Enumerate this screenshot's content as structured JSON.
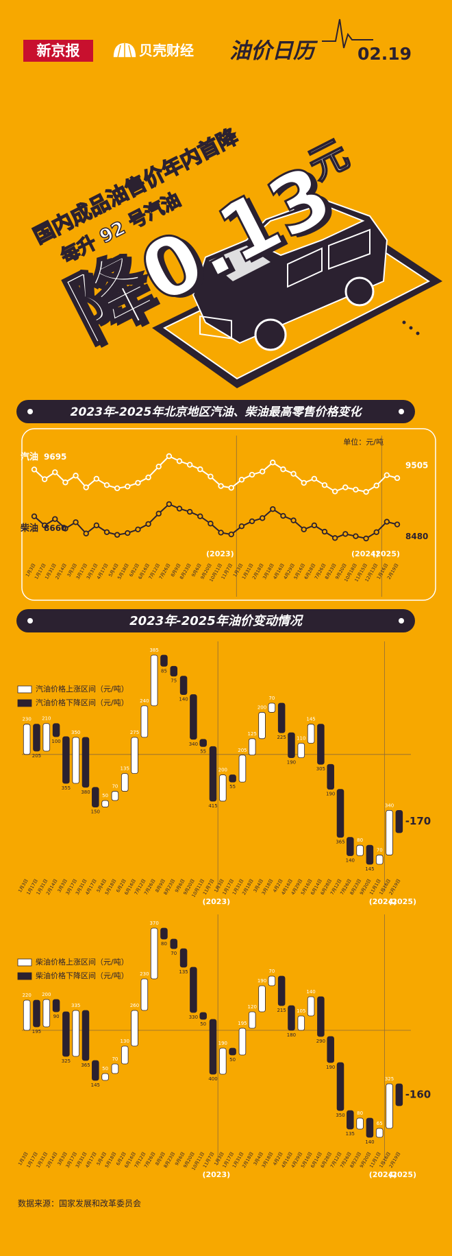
{
  "header": {
    "logo_newspaper": "新京报",
    "logo_finance": "贝壳财经",
    "column": "油价日历",
    "date": "02.19"
  },
  "hero": {
    "headline": "国内成品油售价年内首降",
    "subline": "每升 92 号汽油",
    "big": "降0.13",
    "unit": "元"
  },
  "waterfall_section_title": "2023年-2025年油价变动情况",
  "source": "数据来源：国家发展和改革委员会",
  "chart_data": [
    {
      "type": "line",
      "title": "2023年-2025年北京地区汽油、柴油最高零售价格变化",
      "unit": "单位：元/吨",
      "categories": [
        "1月3日",
        "1月17日",
        "1月31日",
        "2月14日",
        "3月3日",
        "3月17日",
        "3月31日",
        "4月17日",
        "5月4日",
        "5月18日",
        "6月2日",
        "6月16日",
        "7月12日",
        "7月26日",
        "8月9日",
        "8月23日",
        "9月6日",
        "9月20日",
        "10月11日",
        "11月7日",
        "1月3日",
        "1月31日",
        "2月18日",
        "3月18日",
        "4月16日",
        "4月29日",
        "5月16日",
        "6月28日",
        "7月26日",
        "8月23日",
        "9月20日",
        "10月18日",
        "11月15日",
        "12月13日",
        "1月16日",
        "2月19日"
      ],
      "annotations": [
        "(2023)",
        "(2024)",
        "(2025)"
      ],
      "series": [
        {
          "name": "汽油",
          "color": "#ffffff",
          "values": [
            9695,
            9480,
            9635,
            9410,
            9560,
            9300,
            9490,
            9350,
            9280,
            9320,
            9400,
            9520,
            9760,
            9990,
            9880,
            9800,
            9700,
            9540,
            9330,
            9290,
            9470,
            9580,
            9650,
            9850,
            9700,
            9600,
            9400,
            9490,
            9350,
            9210,
            9300,
            9250,
            9200,
            9340,
            9570,
            9505
          ]
        },
        {
          "name": "柴油",
          "color": "#2b2130",
          "values": [
            8660,
            8460,
            8600,
            8390,
            8530,
            8280,
            8460,
            8310,
            8250,
            8290,
            8370,
            8490,
            8720,
            8930,
            8830,
            8760,
            8660,
            8500,
            8300,
            8260,
            8440,
            8550,
            8620,
            8820,
            8670,
            8570,
            8370,
            8460,
            8320,
            8180,
            8270,
            8220,
            8170,
            8310,
            8540,
            8480
          ]
        }
      ]
    },
    {
      "type": "waterfall",
      "categories": [
        "1月3日",
        "1月17日",
        "1月31日",
        "2月14日",
        "3月3日",
        "3月17日",
        "3月31日",
        "4月17日",
        "5月4日",
        "5月18日",
        "6月2日",
        "6月16日",
        "7月12日",
        "7月26日",
        "8月9日",
        "8月23日",
        "9月6日",
        "9月20日",
        "10月11日",
        "11月7日",
        "1月3日",
        "1月17日",
        "1月31日",
        "2月18日",
        "3月4日",
        "3月18日",
        "4月2日",
        "4月16日",
        "4月29日",
        "5月16日",
        "6月14日",
        "6月28日",
        "7月12日",
        "7月26日",
        "8月23日",
        "9月20日",
        "11月1日",
        "1月16日",
        "2月19日"
      ],
      "annotations": [
        "(2023)",
        "(2024)",
        "(2025)"
      ],
      "series": [
        {
          "name": "汽油价格上涨区间（元/吨）",
          "color": "#ffffff",
          "values": [
            230,
            null,
            210,
            null,
            null,
            350,
            null,
            null,
            50,
            70,
            135,
            275,
            240,
            385,
            null,
            null,
            null,
            null,
            null,
            null,
            200,
            null,
            205,
            125,
            200,
            70,
            null,
            null,
            110,
            145,
            null,
            null,
            null,
            null,
            80,
            null,
            70,
            340,
            null
          ]
        },
        {
          "name": "汽油价格下降区间（元/吨）",
          "color": "#2b2130",
          "values": [
            null,
            205,
            null,
            100,
            355,
            null,
            380,
            150,
            null,
            null,
            null,
            null,
            null,
            null,
            85,
            75,
            140,
            340,
            55,
            415,
            null,
            55,
            null,
            null,
            null,
            null,
            225,
            190,
            null,
            null,
            305,
            190,
            365,
            140,
            null,
            145,
            null,
            null,
            170
          ],
          "value_labels": [
            null,
            null,
            null,
            null,
            null,
            null,
            null,
            null,
            null,
            null,
            null,
            null,
            null,
            null,
            null,
            null,
            null,
            null,
            null,
            null,
            null,
            null,
            null,
            null,
            null,
            null,
            null,
            null,
            null,
            null,
            null,
            null,
            null,
            null,
            null,
            null,
            null,
            null,
            "-170"
          ]
        }
      ]
    },
    {
      "type": "waterfall",
      "categories": [
        "1月3日",
        "1月17日",
        "1月31日",
        "2月14日",
        "3月3日",
        "3月17日",
        "3月31日",
        "4月17日",
        "5月4日",
        "5月18日",
        "6月2日",
        "6月16日",
        "7月12日",
        "7月26日",
        "8月9日",
        "8月23日",
        "9月6日",
        "9月20日",
        "10月11日",
        "11月7日",
        "1月3日",
        "1月17日",
        "1月31日",
        "2月18日",
        "3月4日",
        "3月18日",
        "4月2日",
        "4月16日",
        "4月29日",
        "5月16日",
        "6月14日",
        "6月28日",
        "7月12日",
        "7月26日",
        "8月23日",
        "9月20日",
        "11月1日",
        "1月16日",
        "2月19日"
      ],
      "annotations": [
        "(2023)",
        "(2024)",
        "(2025)"
      ],
      "series": [
        {
          "name": "柴油价格上涨区间（元/吨）",
          "color": "#ffffff",
          "values": [
            220,
            null,
            200,
            null,
            null,
            335,
            null,
            null,
            50,
            70,
            130,
            260,
            230,
            370,
            null,
            null,
            null,
            null,
            null,
            null,
            190,
            null,
            195,
            120,
            190,
            70,
            null,
            null,
            105,
            140,
            null,
            null,
            null,
            null,
            80,
            null,
            65,
            325,
            null
          ]
        },
        {
          "name": "柴油价格下降区间（元/吨）",
          "color": "#2b2130",
          "values": [
            null,
            195,
            null,
            90,
            325,
            null,
            365,
            145,
            null,
            null,
            null,
            null,
            null,
            null,
            80,
            70,
            135,
            330,
            50,
            400,
            null,
            50,
            null,
            null,
            null,
            null,
            215,
            180,
            null,
            null,
            290,
            190,
            350,
            135,
            null,
            140,
            null,
            null,
            160
          ],
          "value_labels": [
            null,
            null,
            null,
            null,
            null,
            null,
            null,
            null,
            null,
            null,
            null,
            null,
            null,
            null,
            null,
            null,
            null,
            null,
            null,
            null,
            null,
            null,
            null,
            null,
            null,
            null,
            null,
            null,
            null,
            null,
            null,
            null,
            null,
            null,
            null,
            null,
            null,
            null,
            "-160"
          ]
        }
      ]
    }
  ]
}
